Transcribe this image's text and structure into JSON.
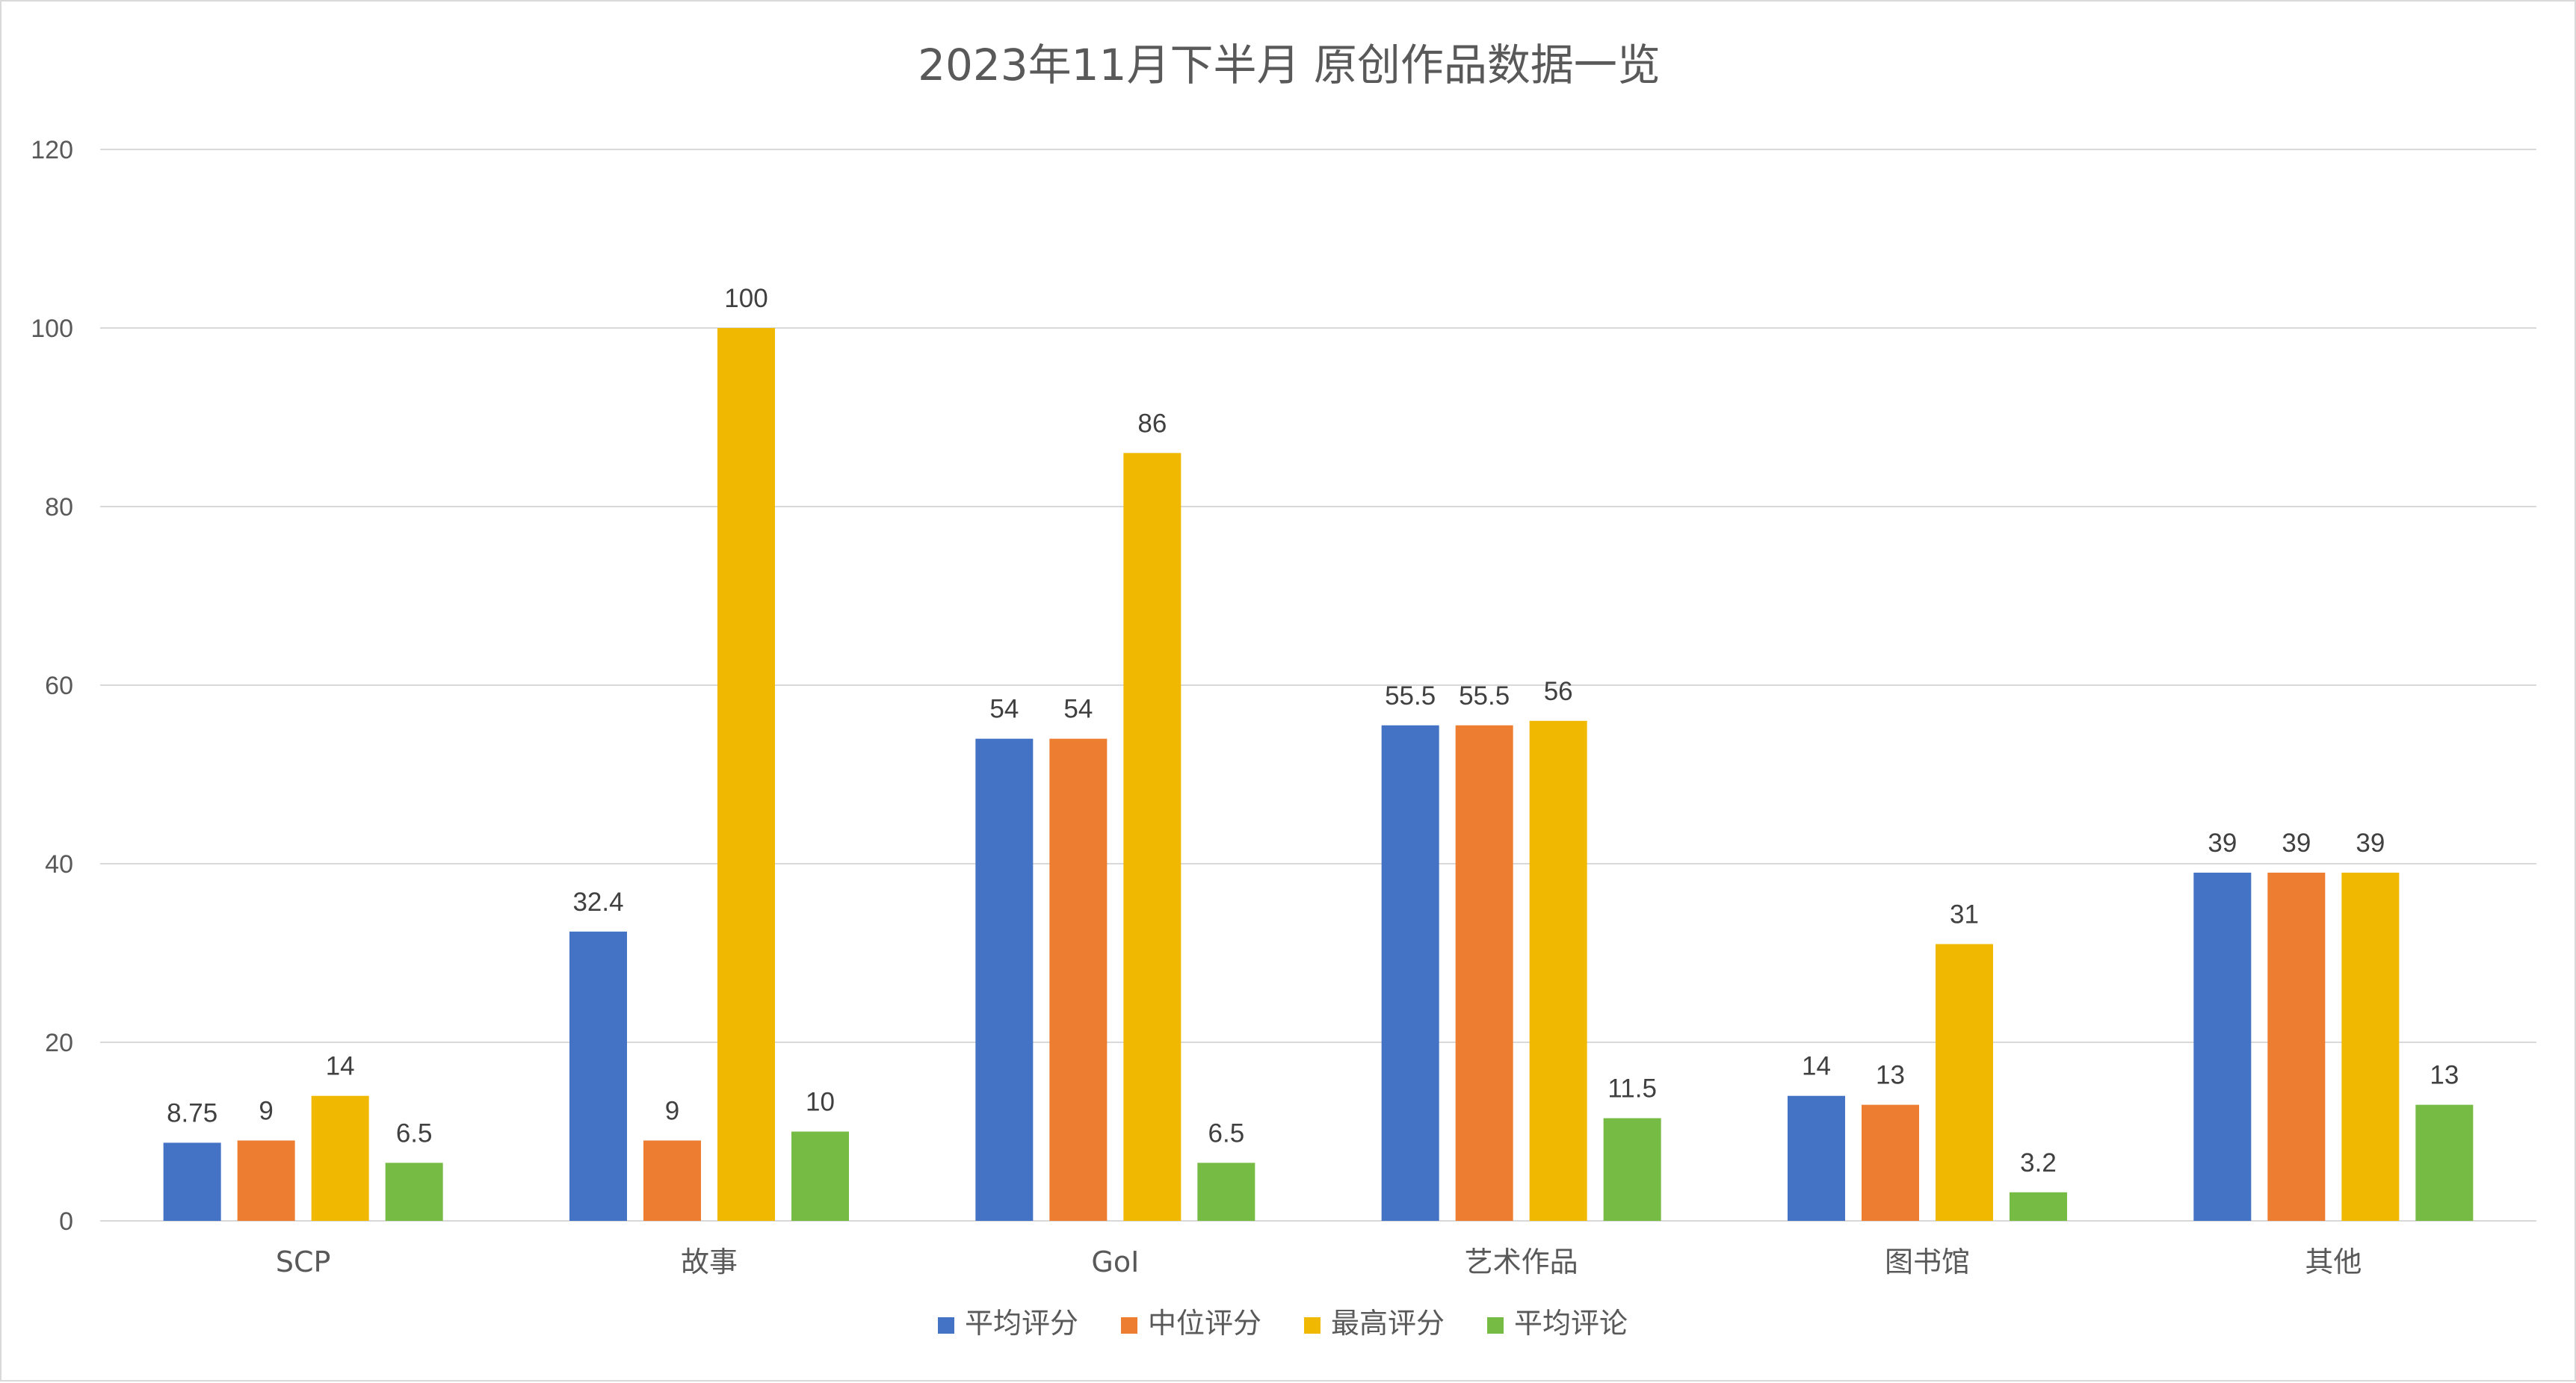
{
  "chart_data": {
    "type": "bar",
    "title": "2023年11月下半月 原创作品数据一览",
    "categories": [
      "SCP",
      "故事",
      "GoI",
      "艺术作品",
      "图书馆",
      "其他"
    ],
    "series": [
      {
        "name": "平均评分",
        "color": "#4472C4",
        "values": [
          8.75,
          32.4,
          54,
          55.5,
          14,
          39
        ]
      },
      {
        "name": "中位评分",
        "color": "#ED7D31",
        "values": [
          9,
          9,
          54,
          55.5,
          13,
          39
        ]
      },
      {
        "name": "最高评分",
        "color": "#F0B800",
        "values": [
          14,
          100,
          86,
          56,
          31,
          39
        ]
      },
      {
        "name": "平均评论",
        "color": "#76BC44",
        "values": [
          6.5,
          10,
          6.5,
          11.5,
          3.2,
          13
        ]
      }
    ],
    "ylim": [
      0,
      120
    ],
    "yticks": [
      0,
      20,
      40,
      60,
      80,
      100,
      120
    ],
    "xlabel": "",
    "ylabel": "",
    "grid": true,
    "legend": "bottom"
  }
}
